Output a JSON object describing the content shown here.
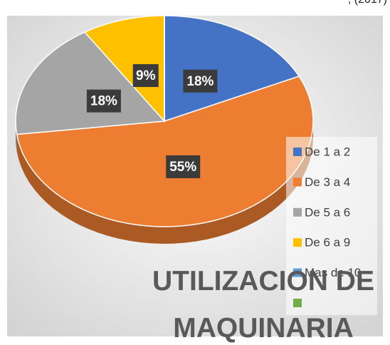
{
  "source": ", (2017)",
  "chart_data": {
    "type": "pie",
    "title": "UTILIZACION DE MAQUINARIA",
    "categories": [
      "De 1 a 2",
      "De 3 a 4",
      "De 5 a 6",
      "De 6 a 9",
      "Mas de 10",
      null
    ],
    "values": [
      18,
      55,
      18,
      9,
      0,
      0
    ],
    "value_labels": [
      "18%",
      "55%",
      "18%",
      "9%",
      null,
      null
    ],
    "colors": [
      "#4472c4",
      "#ed7d31",
      "#a5a5a5",
      "#ffc000",
      "#5b9bd5",
      "#70ad47"
    ],
    "legend": "right"
  }
}
